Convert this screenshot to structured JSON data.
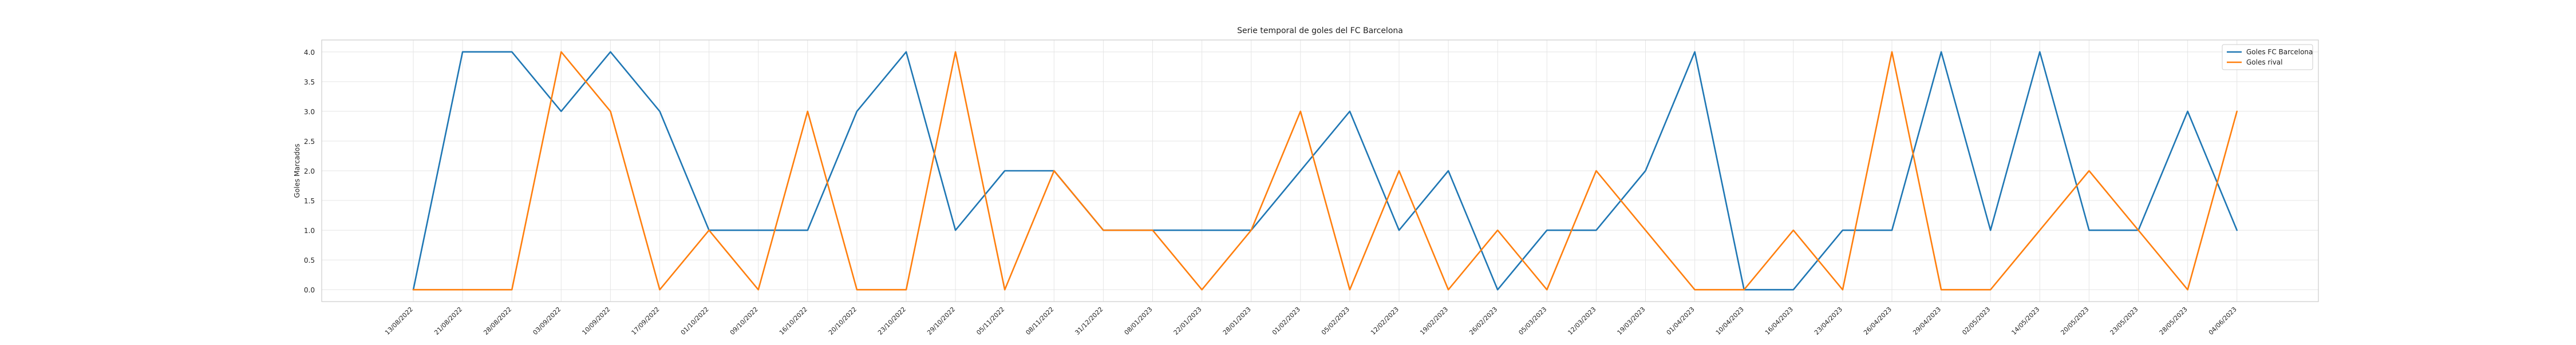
{
  "chart_data": {
    "type": "line",
    "title": "Serie temporal de goles del FC Barcelona",
    "xlabel": "",
    "ylabel": "Goles Marcados",
    "ylim": [
      -0.2,
      4.2
    ],
    "yticks": [
      "0.0",
      "0.5",
      "1.0",
      "1.5",
      "2.0",
      "2.5",
      "3.0",
      "3.5",
      "4.0"
    ],
    "grid": true,
    "legend_position": "top-right",
    "categories": [
      "13/08/2022",
      "21/08/2022",
      "28/08/2022",
      "03/09/2022",
      "10/09/2022",
      "17/09/2022",
      "01/10/2022",
      "09/10/2022",
      "16/10/2022",
      "20/10/2022",
      "23/10/2022",
      "29/10/2022",
      "05/11/2022",
      "08/11/2022",
      "31/12/2022",
      "08/01/2023",
      "22/01/2023",
      "28/01/2023",
      "01/02/2023",
      "05/02/2023",
      "12/02/2023",
      "19/02/2023",
      "26/02/2023",
      "05/03/2023",
      "12/03/2023",
      "19/03/2023",
      "01/04/2023",
      "10/04/2023",
      "16/04/2023",
      "23/04/2023",
      "26/04/2023",
      "29/04/2023",
      "02/05/2023",
      "14/05/2023",
      "20/05/2023",
      "23/05/2023",
      "28/05/2023",
      "04/06/2023"
    ],
    "series": [
      {
        "name": "Goles FC Barcelona",
        "color": "#1f77b4",
        "values": [
          0,
          4,
          4,
          3,
          4,
          3,
          1,
          1,
          1,
          3,
          4,
          1,
          2,
          2,
          1,
          1,
          1,
          1,
          2,
          3,
          1,
          2,
          0,
          1,
          1,
          2,
          4,
          0,
          0,
          1,
          1,
          4,
          1,
          4,
          1,
          1,
          3,
          1
        ]
      },
      {
        "name": "Goles rival",
        "color": "#ff7f0e",
        "values": [
          0,
          0,
          0,
          4,
          3,
          0,
          1,
          0,
          3,
          0,
          0,
          4,
          0,
          2,
          1,
          1,
          0,
          1,
          3,
          0,
          2,
          0,
          1,
          0,
          2,
          1,
          0,
          0,
          1,
          0,
          4,
          0,
          0,
          1,
          2,
          1,
          0,
          3
        ]
      }
    ]
  }
}
